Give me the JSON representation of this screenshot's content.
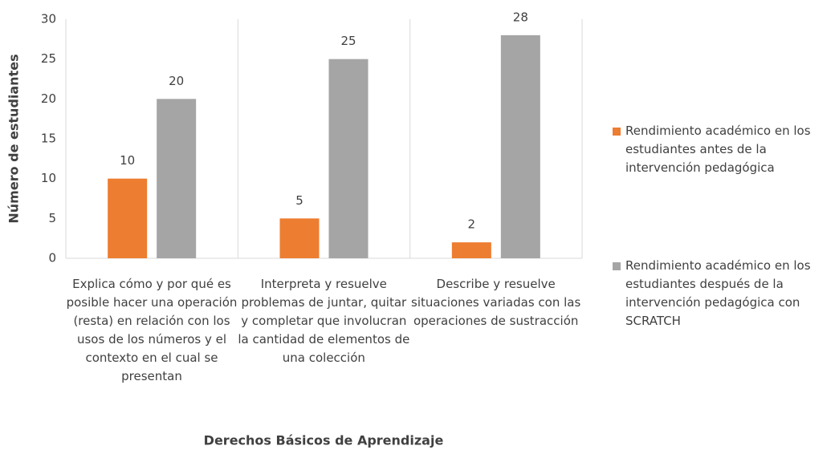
{
  "chart_data": {
    "type": "bar",
    "x_label": "Derechos Básicos de Aprendizaje",
    "y_label": "Número de estudiantes",
    "categories": [
      "Explica cómo y por qué es posible hacer una operación (resta) en relación con los usos de los números y el contexto en el cual se presentan",
      "Interpreta y resuelve problemas de juntar, quitar y completar que involucran la cantidad de elementos de una colección",
      "Describe y resuelve situaciones variadas con las operaciones de sustracción"
    ],
    "series": [
      {
        "name": "Rendimiento académico en los estudiantes  antes de la intervención pedagógica",
        "color": "#ed7d31",
        "values": [
          10,
          5,
          2
        ]
      },
      {
        "name": "Rendimiento académico en los estudiantes  después de la intervención pedagógica con SCRATCH",
        "color": "#a5a5a5",
        "values": [
          20,
          25,
          28
        ]
      }
    ],
    "ylim": [
      0,
      30
    ],
    "yticks": [
      0,
      5,
      10,
      15,
      20,
      25,
      30
    ],
    "legend": "right"
  }
}
